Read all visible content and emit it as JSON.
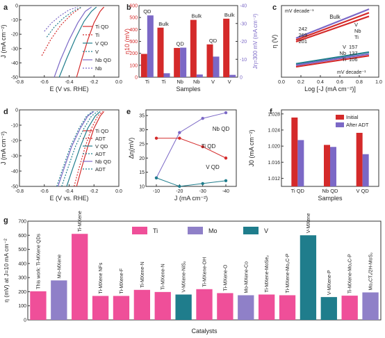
{
  "colors": {
    "ti": "#d42a2a",
    "v": "#1f7d8c",
    "nb": "#7b68c6",
    "axis": "#333333",
    "tick": "#222222"
  },
  "chart_data": [
    {
      "panel": "a",
      "type": "line",
      "xlabel": "E (V vs. RHE)",
      "ylabel": "J (mA cm⁻²)",
      "xlim": [
        -0.8,
        0.0
      ],
      "ylim": [
        -50,
        0
      ],
      "xticks": [
        "-0.8",
        "-0.6",
        "-0.4",
        "-0.2",
        "0.0"
      ],
      "yticks": [
        "-50",
        "-40",
        "-30",
        "-20",
        "-10",
        "0"
      ],
      "legend_position": "top-right",
      "series": [
        {
          "name": "Ti QD",
          "color": "#d42a2a",
          "dash": "solid",
          "x": [
            -0.34,
            -0.3,
            -0.25,
            -0.2,
            -0.15,
            -0.12
          ],
          "y": [
            -50,
            -38,
            -24,
            -12,
            -4,
            -1
          ]
        },
        {
          "name": "Ti",
          "color": "#d42a2a",
          "dash": "dot",
          "x": [
            -0.62,
            -0.55,
            -0.47,
            -0.38,
            -0.3
          ],
          "y": [
            -35,
            -24,
            -14,
            -6,
            -1
          ]
        },
        {
          "name": "V QD",
          "color": "#1f7d8c",
          "dash": "solid",
          "x": [
            -0.48,
            -0.42,
            -0.35,
            -0.28,
            -0.22,
            -0.18
          ],
          "y": [
            -50,
            -37,
            -23,
            -11,
            -4,
            -1
          ]
        },
        {
          "name": "V",
          "color": "#1f7d8c",
          "dash": "dot",
          "x": [
            -0.58,
            -0.52,
            -0.45,
            -0.37,
            -0.3
          ],
          "y": [
            -22,
            -15,
            -9,
            -4,
            -1
          ]
        },
        {
          "name": "Nb QD",
          "color": "#7b68c6",
          "dash": "solid",
          "x": [
            -0.52,
            -0.47,
            -0.4,
            -0.33,
            -0.27,
            -0.22
          ],
          "y": [
            -50,
            -38,
            -24,
            -12,
            -4,
            -1
          ]
        },
        {
          "name": "Nb",
          "color": "#7b68c6",
          "dash": "dot",
          "x": [
            -0.6,
            -0.54,
            -0.47,
            -0.4,
            -0.33
          ],
          "y": [
            -18,
            -12,
            -7,
            -3,
            -1
          ]
        }
      ]
    },
    {
      "panel": "b",
      "type": "bar",
      "xlabel": "Samples",
      "ylabel": "η10 (mV)",
      "ylabel_right": "Jη=300 mV (mA cm⁻²)",
      "categories": [
        "Ti",
        "Ti",
        "Nb",
        "Nb",
        "V",
        "V"
      ],
      "group_labels": [
        "QD",
        "Bulk",
        "QD",
        "Bulk",
        "QD",
        "Bulk"
      ],
      "ylim": [
        0,
        600
      ],
      "ylim_right": [
        0,
        -40
      ],
      "yticks": [
        "0",
        "100",
        "200",
        "300",
        "400",
        "500",
        "600"
      ],
      "yticks_right": [
        "0",
        "-10",
        "-20",
        "-30",
        "-40"
      ],
      "series": [
        {
          "name": "η10",
          "color": "#d42a2a",
          "values": [
            195,
            415,
            245,
            480,
            275,
            490
          ]
        },
        {
          "name": "J at η=300 mV",
          "color": "#7b68c6",
          "values": [
            -34.5,
            -2.2,
            -16.5,
            -1.5,
            -11.5,
            -1.3
          ]
        }
      ]
    },
    {
      "panel": "c",
      "type": "line",
      "xlabel": "Log [-J (mA cm⁻²)]",
      "ylabel": "η (V)",
      "xlim": [
        0.0,
        1.0
      ],
      "ylim": [
        0.05,
        0.45
      ],
      "xticks": [
        "0.0",
        "0.2",
        "0.4",
        "0.6",
        "0.8",
        "1.0"
      ],
      "annotations": [
        "Bulk",
        "mV decade⁻¹",
        "mV decade⁻¹",
        "242",
        "269",
        "201",
        "157",
        "137",
        "106"
      ],
      "series": [
        {
          "name": "V",
          "color": "#7b68c6",
          "x": [
            0.15,
            0.9
          ],
          "y": [
            0.268,
            0.43
          ]
        },
        {
          "name": "Nb",
          "color": "#d42a2a",
          "x": [
            0.15,
            0.9
          ],
          "y": [
            0.258,
            0.41
          ]
        },
        {
          "name": "Ti",
          "color": "#d42a2a",
          "x": [
            0.15,
            0.9
          ],
          "y": [
            0.248,
            0.39
          ]
        },
        {
          "name": "V",
          "color": "#1f7d8c",
          "x": [
            0.15,
            0.9
          ],
          "y": [
            0.125,
            0.19
          ]
        },
        {
          "name": "Nb",
          "color": "#7b68c6",
          "x": [
            0.15,
            0.9
          ],
          "y": [
            0.117,
            0.18
          ]
        },
        {
          "name": "Ti",
          "color": "#d42a2a",
          "x": [
            0.15,
            0.9
          ],
          "y": [
            0.108,
            0.17
          ]
        }
      ]
    },
    {
      "panel": "d",
      "type": "line",
      "xlabel": "E (V vs. RHE)",
      "ylabel": "J (mA cm⁻²)",
      "xlim": [
        -0.8,
        0.0
      ],
      "ylim": [
        -50,
        0
      ],
      "xticks": [
        "-0.8",
        "-0.6",
        "-0.4",
        "-0.2",
        "0.0"
      ],
      "yticks": [
        "-50",
        "-40",
        "-30",
        "-20",
        "-10",
        "0"
      ],
      "legend_position": "top-right",
      "series": [
        {
          "name": "Ti QD",
          "color": "#d42a2a",
          "dash": "solid",
          "x": [
            -0.34,
            -0.3,
            -0.25,
            -0.2,
            -0.15,
            -0.12
          ],
          "y": [
            -50,
            -38,
            -24,
            -12,
            -4,
            -1
          ]
        },
        {
          "name": "ADT",
          "color": "#d42a2a",
          "dash": "dot",
          "x": [
            -0.36,
            -0.32,
            -0.27,
            -0.22,
            -0.17,
            -0.13
          ],
          "y": [
            -50,
            -38,
            -24,
            -12,
            -4,
            -1
          ]
        },
        {
          "name": "V QD",
          "color": "#1f7d8c",
          "dash": "solid",
          "x": [
            -0.42,
            -0.37,
            -0.31,
            -0.25,
            -0.19,
            -0.15
          ],
          "y": [
            -50,
            -38,
            -24,
            -12,
            -4,
            -1
          ]
        },
        {
          "name": "ADT",
          "color": "#1f7d8c",
          "dash": "dot",
          "x": [
            -0.46,
            -0.41,
            -0.35,
            -0.28,
            -0.22,
            -0.17
          ],
          "y": [
            -50,
            -38,
            -24,
            -12,
            -4,
            -1
          ]
        },
        {
          "name": "Nb QD",
          "color": "#7b68c6",
          "dash": "solid",
          "x": [
            -0.49,
            -0.44,
            -0.38,
            -0.31,
            -0.25,
            -0.2
          ],
          "y": [
            -50,
            -38,
            -24,
            -12,
            -4,
            -1
          ]
        },
        {
          "name": "ADT",
          "color": "#1f7d8c",
          "dash": "dot",
          "x": [
            -0.5,
            -0.45,
            -0.39,
            -0.32,
            -0.26,
            -0.21
          ],
          "y": [
            -50,
            -38,
            -24,
            -12,
            -4,
            -1
          ]
        }
      ]
    },
    {
      "panel": "e",
      "type": "line",
      "xlabel": "J (mA cm⁻²)",
      "ylabel": "Δη(mV)",
      "categories": [
        "-10",
        "-20",
        "-30",
        "-40"
      ],
      "ylim": [
        10,
        37
      ],
      "yticks": [
        "10",
        "15",
        "20",
        "25",
        "30",
        "35"
      ],
      "series": [
        {
          "name": "Nb QD",
          "color": "#7b68c6",
          "values": [
            13,
            29,
            34,
            36
          ]
        },
        {
          "name": "Ti QD",
          "color": "#d42a2a",
          "values": [
            27,
            27,
            24,
            20
          ]
        },
        {
          "name": "V QD",
          "color": "#1f7d8c",
          "values": [
            13,
            10,
            11,
            12
          ]
        }
      ]
    },
    {
      "panel": "f",
      "type": "bar",
      "xlabel": "Samples",
      "ylabel": "J0 (mA cm⁻²)",
      "categories": [
        "Ti QD",
        "Nb QD",
        "V QD"
      ],
      "ylim": [
        1.01,
        1.029
      ],
      "yticks": [
        "1.012",
        "1.016",
        "1.020",
        "1.024",
        "1.028"
      ],
      "legend_position": "top-right",
      "series": [
        {
          "name": "Initial",
          "color": "#d42a2a",
          "values": [
            1.0271,
            1.0203,
            1.0233
          ]
        },
        {
          "name": "After ADT",
          "color": "#7b68c6",
          "values": [
            1.0215,
            1.0198,
            1.018
          ]
        }
      ]
    },
    {
      "panel": "g",
      "type": "bar",
      "xlabel": "Catalysts",
      "ylabel": "η (mV) at J=10 mA cm⁻²",
      "ylim": [
        0,
        700
      ],
      "yticks": [
        "0",
        "100",
        "200",
        "300",
        "400",
        "500",
        "600",
        "700"
      ],
      "legend_position": "top-center",
      "legend": [
        {
          "name": "Ti",
          "color": "#ef4f99"
        },
        {
          "name": "Mo",
          "color": "#8f80c8"
        },
        {
          "name": "V",
          "color": "#1f7d8c"
        }
      ],
      "categories": [
        "This work: Ti-MXene QDs",
        "Mo-MXene",
        "Ti-MXene",
        "Ti-MXene NFs",
        "Ti-MXene-F",
        "Ti-MXene-N",
        "Ti-MXene-N",
        "V-MXene-NiS₂",
        "Ti-MXene-OH",
        "Ti-MXene-O",
        "Mo-MXene-Co",
        "Ti-MXene-MoSe₂",
        "Ti-MXene-Mo₂C-P",
        "V-MXene",
        "V-MXene-P",
        "Ti-MXene-Mo₂C-P",
        "Mo₂CTₓ/2H-MoS₂"
      ],
      "values": [
        203,
        280,
        610,
        170,
        170,
        213,
        198,
        180,
        218,
        190,
        175,
        180,
        175,
        600,
        162,
        172,
        195
      ],
      "bar_colors": [
        "#ef4f99",
        "#8f80c8",
        "#ef4f99",
        "#ef4f99",
        "#ef4f99",
        "#ef4f99",
        "#ef4f99",
        "#1f7d8c",
        "#ef4f99",
        "#ef4f99",
        "#8f80c8",
        "#ef4f99",
        "#ef4f99",
        "#1f7d8c",
        "#1f7d8c",
        "#ef4f99",
        "#8f80c8"
      ]
    }
  ]
}
